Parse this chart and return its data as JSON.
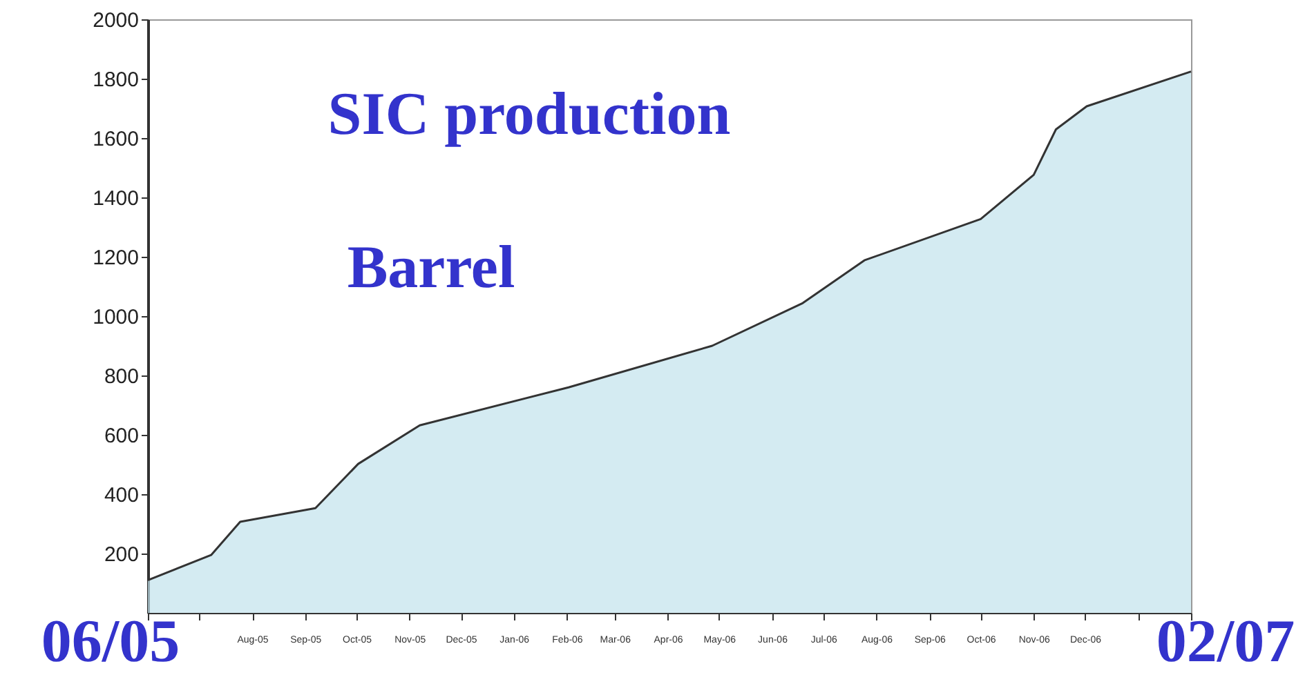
{
  "chart_data": {
    "type": "area",
    "title": "SIC production",
    "subtitle": "Barrel",
    "x": [
      "2005-06-01",
      "2005-07-08",
      "2005-07-25",
      "2005-09-07",
      "2005-10-02",
      "2005-11-07",
      "2006-02-02",
      "2006-04-27",
      "2006-06-19",
      "2006-07-25",
      "2006-10-01",
      "2006-11-01",
      "2006-11-14",
      "2006-12-02",
      "2007-02-01"
    ],
    "series": [
      {
        "color": "#c2e3ec",
        "values": [
          110,
          195,
          307,
          353,
          502,
          632,
          760,
          900,
          1044,
          1188,
          1327,
          1476,
          1629,
          1707,
          1824
        ]
      }
    ],
    "xlim": [
      "2005-06-01",
      "2007-02-01"
    ],
    "xticks": [
      {
        "value": "2005-06-01",
        "label": null
      },
      {
        "value": "2005-07-01",
        "label": null
      },
      {
        "value": "2005-08-01",
        "label": "Aug-05"
      },
      {
        "value": "2005-09-01",
        "label": "Sep-05"
      },
      {
        "value": "2005-10-01",
        "label": "Oct-05"
      },
      {
        "value": "2005-11-01",
        "label": "Nov-05"
      },
      {
        "value": "2005-12-01",
        "label": "Dec-05"
      },
      {
        "value": "2006-01-01",
        "label": "Jan-06"
      },
      {
        "value": "2006-02-01",
        "label": "Feb-06"
      },
      {
        "value": "2006-03-01",
        "label": "Mar-06"
      },
      {
        "value": "2006-04-01",
        "label": "Apr-06"
      },
      {
        "value": "2006-05-01",
        "label": "May-06"
      },
      {
        "value": "2006-06-01",
        "label": "Jun-06"
      },
      {
        "value": "2006-07-01",
        "label": "Jul-06"
      },
      {
        "value": "2006-08-01",
        "label": "Aug-06"
      },
      {
        "value": "2006-09-01",
        "label": "Sep-06"
      },
      {
        "value": "2006-10-01",
        "label": "Oct-06"
      },
      {
        "value": "2006-11-01",
        "label": "Nov-06"
      },
      {
        "value": "2006-12-01",
        "label": "Dec-06"
      },
      {
        "value": "2007-01-01",
        "label": null
      },
      {
        "value": "2007-02-01",
        "label": null
      }
    ],
    "ylim": [
      0,
      2000
    ],
    "yticks": [
      200,
      400,
      600,
      800,
      1000,
      1200,
      1400,
      1600,
      1800,
      2000
    ],
    "annotations": [
      "06/05",
      "02/07"
    ]
  }
}
